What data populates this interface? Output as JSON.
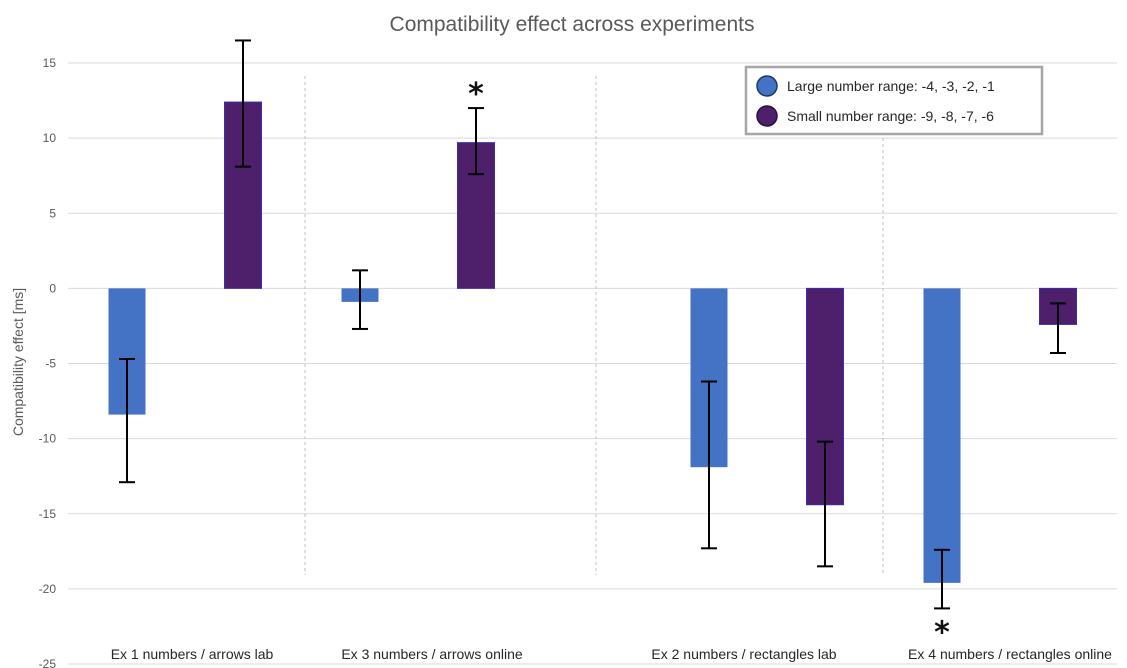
{
  "chart_data": {
    "type": "bar",
    "title": "Compatibility effect across experiments",
    "xlabel": "",
    "ylabel": "Compatibility effect [ms]",
    "ylim": [
      -25,
      15
    ],
    "yticks": [
      15,
      10,
      5,
      0,
      -5,
      -10,
      -15,
      -20,
      -25
    ],
    "grid": true,
    "legend_position": "top-right",
    "categories": [
      "Ex 1 numbers / arrows lab",
      "Ex 3 numbers / arrows online",
      "Ex 2 numbers / rectangles lab",
      "Ex 4 numbers / rectangles online"
    ],
    "series": [
      {
        "name": "Large number range: -4, -3, -2, -1",
        "color": "#4472C4",
        "values": [
          -8.4,
          -0.9,
          -11.9,
          -19.6
        ],
        "error_low": [
          -12.9,
          -2.7,
          -17.3,
          -21.3
        ],
        "error_high": [
          -4.7,
          1.2,
          -6.2,
          -17.4
        ]
      },
      {
        "name": "Small number range: -9, -8, -7, -6",
        "color": "#4E1F6B",
        "values": [
          12.4,
          9.7,
          -14.4,
          -2.4
        ],
        "error_low": [
          8.1,
          7.6,
          -18.5,
          -4.3
        ],
        "error_high": [
          16.5,
          12.0,
          -10.2,
          -1.0
        ]
      }
    ],
    "significance_markers": [
      {
        "category": 1,
        "series": 1,
        "label": "*"
      },
      {
        "category": 3,
        "series": 0,
        "label": "*"
      }
    ]
  }
}
